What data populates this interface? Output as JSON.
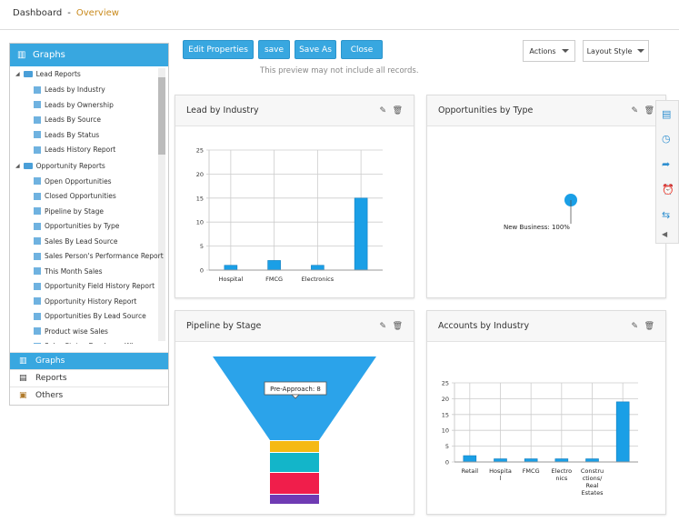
{
  "header": {
    "title": "Dashboard",
    "separator": "-",
    "subtitle": "Overview"
  },
  "sidebar": {
    "title": "Graphs",
    "groups": [
      {
        "label": "Lead Reports",
        "items": [
          "Leads by Industry",
          "Leads by Ownership",
          "Leads By Source",
          "Leads By Status",
          "Leads History Report"
        ]
      },
      {
        "label": "Opportunity Reports",
        "items": [
          "Open Opportunities",
          "Closed Opportunities",
          "Pipeline by Stage",
          "Opportunities by Type",
          "Sales By Lead Source",
          "Sales Person's Performance Report",
          "This Month Sales",
          "Opportunity Field History Report",
          "Opportunity History Report",
          "Opportunities By Lead Source",
          "Product wise Sales",
          "Sales Status Employee Wise"
        ]
      }
    ],
    "bottom": [
      "Graphs",
      "Reports",
      "Others"
    ]
  },
  "toolbar": {
    "edit": "Edit Properties",
    "save": "save",
    "save_as": "Save As",
    "close": "Close",
    "note": "This preview may not include all records.",
    "actions": "Actions",
    "layout": "Layout Style"
  },
  "colors": {
    "accent": "#38a7e0",
    "bar": "#1a9fe6",
    "funnel": [
      "#2ba3ea",
      "#f5b914",
      "#13b5c9",
      "#f01e4b",
      "#6f3bb3"
    ]
  },
  "panels": {
    "p1": "Lead by Industry",
    "p2": "Opportunities by Type",
    "p3": "Pipeline by Stage",
    "p4": "Accounts by Industry"
  },
  "chart_data": [
    {
      "type": "bar",
      "title": "Lead by Industry",
      "categories": [
        "Hospital",
        "FMCG",
        "Electronics",
        ""
      ],
      "values": [
        1,
        2,
        1,
        15
      ],
      "ylim": [
        0,
        25
      ],
      "yticks": [
        0,
        5,
        10,
        15,
        20,
        25
      ],
      "grid": true
    },
    {
      "type": "pie",
      "title": "Opportunities by Type",
      "slices": [
        {
          "label": "New Business",
          "value": 100
        }
      ],
      "data_label": "New Business: 100%"
    },
    {
      "type": "funnel",
      "title": "Pipeline by Stage",
      "tooltip": "Pre-Approach: 8"
    },
    {
      "type": "bar",
      "title": "Accounts by Industry",
      "categories": [
        "Retail",
        "Hospital",
        "FMCG",
        "Electronics",
        "Constructions/ Real Estates",
        ""
      ],
      "values": [
        2,
        1,
        1,
        1,
        1,
        19
      ],
      "ylim": [
        0,
        25
      ],
      "yticks": [
        0,
        5,
        10,
        15,
        20,
        25
      ],
      "grid": true
    }
  ]
}
